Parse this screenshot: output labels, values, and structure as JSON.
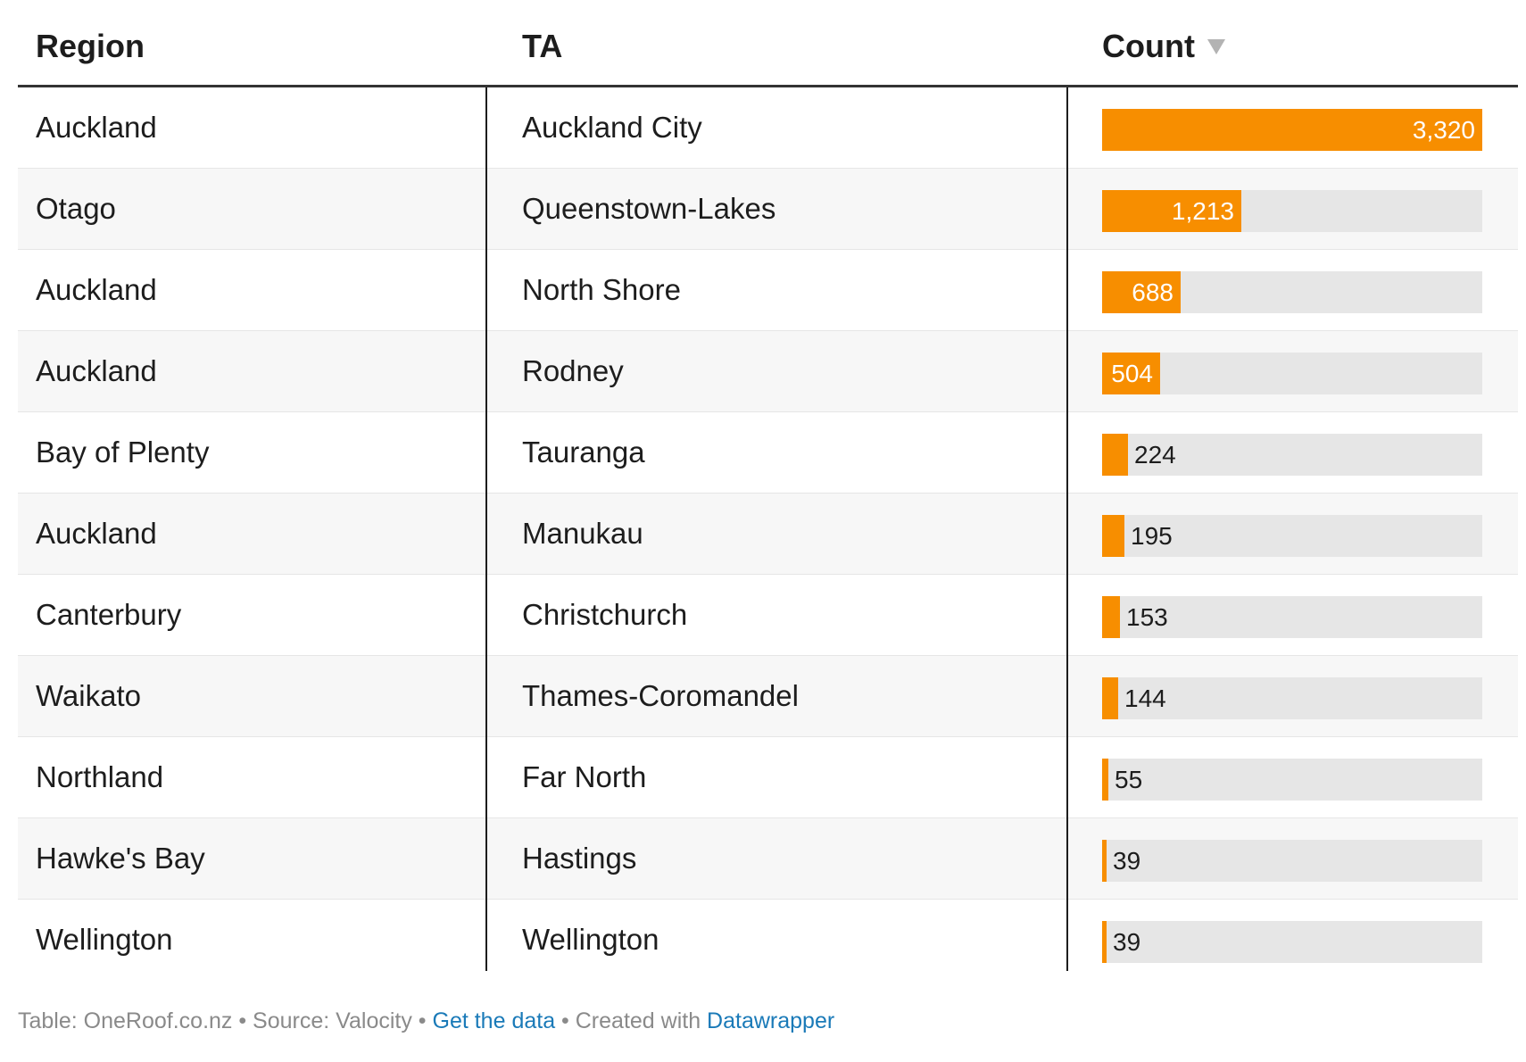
{
  "header": {
    "region": "Region",
    "ta": "TA",
    "count": "Count"
  },
  "chart_data": {
    "type": "table",
    "columns": [
      "Region",
      "TA",
      "Count"
    ],
    "rows": [
      {
        "region": "Auckland",
        "ta": "Auckland City",
        "count": 3320,
        "count_label": "3,320"
      },
      {
        "region": "Otago",
        "ta": "Queenstown-Lakes",
        "count": 1213,
        "count_label": "1,213"
      },
      {
        "region": "Auckland",
        "ta": "North Shore",
        "count": 688,
        "count_label": "688"
      },
      {
        "region": "Auckland",
        "ta": "Rodney",
        "count": 504,
        "count_label": "504"
      },
      {
        "region": "Bay of Plenty",
        "ta": "Tauranga",
        "count": 224,
        "count_label": "224"
      },
      {
        "region": "Auckland",
        "ta": "Manukau",
        "count": 195,
        "count_label": "195"
      },
      {
        "region": "Canterbury",
        "ta": "Christchurch",
        "count": 153,
        "count_label": "153"
      },
      {
        "region": "Waikato",
        "ta": "Thames-Coromandel",
        "count": 144,
        "count_label": "144"
      },
      {
        "region": "Northland",
        "ta": "Far North",
        "count": 55,
        "count_label": "55"
      },
      {
        "region": "Hawke's Bay",
        "ta": "Hastings",
        "count": 39,
        "count_label": "39"
      },
      {
        "region": "Wellington",
        "ta": "Wellington",
        "count": 39,
        "count_label": "39"
      }
    ],
    "bar_max": 3320,
    "bar_color": "#f78e00",
    "bar_track_color": "#e6e6e6",
    "sort": "Count descending"
  },
  "footer": {
    "prefix": "Table: OneRoof.co.nz • Source: Valocity • ",
    "get_data": "Get the data",
    "middle": " • Created with ",
    "datawrapper": "Datawrapper"
  }
}
